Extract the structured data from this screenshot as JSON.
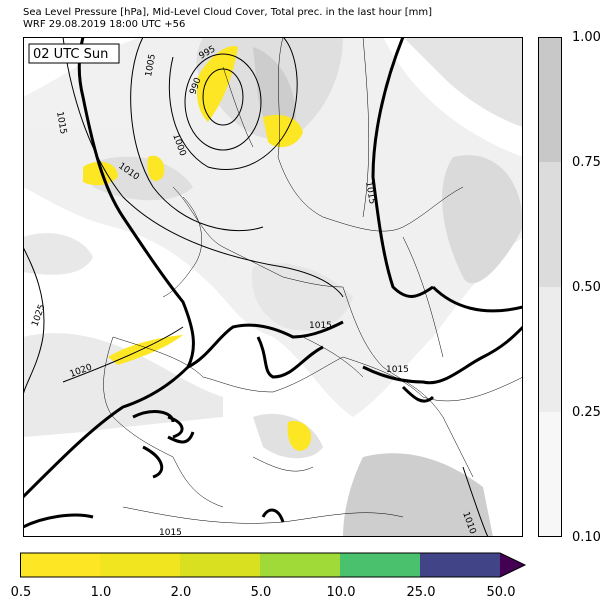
{
  "title_line1": "Sea Level Pressure [hPa], Mid-Level Cloud Cover, Total prec. in the last hour [mm]",
  "title_line2": "WRF 29.08.2019 18:00 UTC +56",
  "time_box": "02 UTC Sun",
  "isobar_labels": [
    "995",
    "990",
    "1000",
    "1005",
    "1015",
    "1010",
    "1025",
    "1020",
    "1015",
    "1015",
    "1015",
    "1015",
    "1010"
  ],
  "cloud_colorbar": {
    "ticks": [
      "1.00",
      "0.75",
      "0.50",
      "0.25",
      "0.10"
    ],
    "colors": [
      "#c8c8c8",
      "#dcdcdc",
      "#ececec",
      "#f7f7f7"
    ]
  },
  "precip_colorbar": {
    "ticks": [
      "0.5",
      "1.0",
      "2.0",
      "5.0",
      "10.0",
      "25.0",
      "50.0"
    ],
    "colors": [
      "#fde725",
      "#f0e51e",
      "#d8e01f",
      "#a0da39",
      "#4ac16d",
      "#2a788e",
      "#414487"
    ],
    "extend_color": "#440154"
  }
}
